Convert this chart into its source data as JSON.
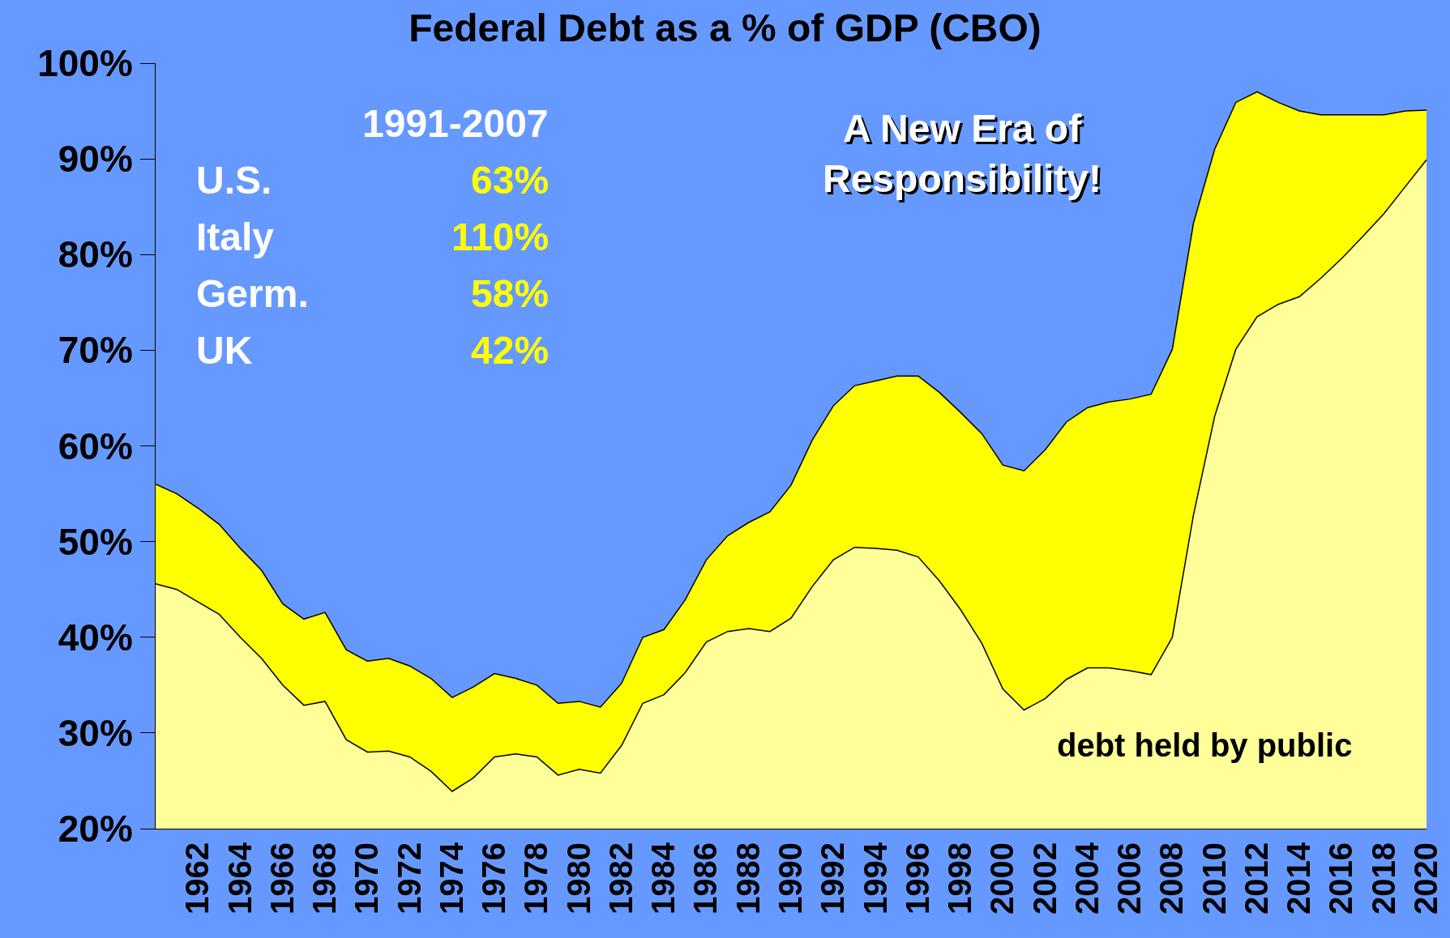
{
  "chart_data": {
    "type": "area",
    "title": "Federal Debt as a % of GDP (CBO)",
    "x": [
      1960,
      1961,
      1962,
      1963,
      1964,
      1965,
      1966,
      1967,
      1968,
      1969,
      1970,
      1971,
      1972,
      1973,
      1974,
      1975,
      1976,
      1977,
      1978,
      1979,
      1980,
      1981,
      1982,
      1983,
      1984,
      1985,
      1986,
      1987,
      1988,
      1989,
      1990,
      1991,
      1992,
      1993,
      1994,
      1995,
      1996,
      1997,
      1998,
      1999,
      2000,
      2001,
      2002,
      2003,
      2004,
      2005,
      2006,
      2007,
      2008,
      2009,
      2010,
      2011,
      2012,
      2013,
      2014,
      2015,
      2016,
      2017,
      2018,
      2019,
      2020
    ],
    "series": [
      {
        "name": "debt held by public",
        "color": "#ffff99",
        "values": [
          45.6,
          45.0,
          43.7,
          42.4,
          40.0,
          37.8,
          35.0,
          32.9,
          33.3,
          29.3,
          28.0,
          28.1,
          27.5,
          26.0,
          23.9,
          25.3,
          27.5,
          27.8,
          27.5,
          25.6,
          26.2,
          25.8,
          28.7,
          33.1,
          34.0,
          36.3,
          39.5,
          40.6,
          40.9,
          40.6,
          42.0,
          45.3,
          48.1,
          49.4,
          49.3,
          49.1,
          48.4,
          45.9,
          42.9,
          39.4,
          34.6,
          32.4,
          33.6,
          35.6,
          36.8,
          36.8,
          36.5,
          36.1,
          40.0,
          52.8,
          63.1,
          70.1,
          73.5,
          74.8,
          75.6,
          77.5,
          79.6,
          81.9,
          84.3,
          87.1,
          89.9
        ]
      },
      {
        "color": "#ffff00",
        "values": [
          56.0,
          55.0,
          53.5,
          51.8,
          49.3,
          47.0,
          43.5,
          41.9,
          42.6,
          38.7,
          37.5,
          37.8,
          37.0,
          35.7,
          33.7,
          34.8,
          36.2,
          35.7,
          35.0,
          33.1,
          33.3,
          32.7,
          35.2,
          40.0,
          40.8,
          43.9,
          48.1,
          50.6,
          52.0,
          53.1,
          55.9,
          60.6,
          64.2,
          66.3,
          66.8,
          67.3,
          67.3,
          65.6,
          63.5,
          61.3,
          58.0,
          57.4,
          59.6,
          62.5,
          64.0,
          64.6,
          64.9,
          65.4,
          70.1,
          83.3,
          91.0,
          95.9,
          97.0,
          95.9,
          95.0,
          94.6,
          94.6,
          94.6,
          94.6,
          95.0,
          95.1
        ]
      }
    ],
    "xlim": [
      1960,
      2020
    ],
    "xticks": [
      1962,
      1964,
      1966,
      1968,
      1970,
      1972,
      1974,
      1976,
      1978,
      1980,
      1982,
      1984,
      1986,
      1988,
      1990,
      1992,
      1994,
      1996,
      1998,
      2000,
      2002,
      2004,
      2006,
      2008,
      2010,
      2012,
      2014,
      2016,
      2018,
      2020
    ],
    "ylim": [
      20,
      100
    ],
    "yticks": [
      {
        "value": 20,
        "label": "20%"
      },
      {
        "value": 30,
        "label": "30%"
      },
      {
        "value": 40,
        "label": "40%"
      },
      {
        "value": 50,
        "label": "50%"
      },
      {
        "value": 60,
        "label": "60%"
      },
      {
        "value": 70,
        "label": "70%"
      },
      {
        "value": 80,
        "label": "80%"
      },
      {
        "value": 90,
        "label": "90%"
      },
      {
        "value": 100,
        "label": "100%"
      }
    ],
    "annotations": [
      "1991-2007",
      "U.S.",
      "63%",
      "Italy",
      "110%",
      "Germ.",
      "58%",
      "UK",
      "42%",
      "A New Era of\nResponsibility!"
    ],
    "grid": false,
    "legend": false
  }
}
